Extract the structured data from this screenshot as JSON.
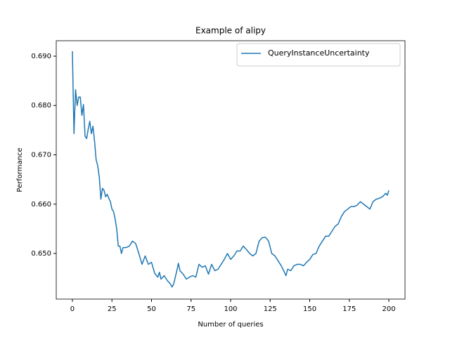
{
  "chart_data": {
    "type": "line",
    "title": "Example of alipy",
    "x_label": "Number of queries",
    "y_label": "Performance",
    "x": [
      0,
      1,
      2,
      3,
      4,
      5,
      6,
      7,
      8,
      9,
      10,
      11,
      12,
      13,
      14,
      15,
      16,
      17,
      18,
      19,
      20,
      21,
      22,
      23,
      24,
      25,
      26,
      27,
      28,
      29,
      30,
      31,
      32,
      34,
      36,
      38,
      40,
      42,
      44,
      46,
      48,
      50,
      52,
      54,
      55,
      56,
      58,
      60,
      62,
      63,
      64,
      66,
      67,
      68,
      70,
      72,
      74,
      76,
      78,
      80,
      82,
      84,
      86,
      88,
      90,
      92,
      94,
      96,
      98,
      100,
      102,
      104,
      106,
      108,
      110,
      112,
      114,
      116,
      118,
      120,
      122,
      124,
      126,
      128,
      130,
      132,
      134,
      135,
      136,
      138,
      140,
      142,
      144,
      146,
      148,
      150,
      152,
      154,
      156,
      158,
      160,
      162,
      164,
      166,
      168,
      170,
      172,
      174,
      176,
      178,
      180,
      182,
      184,
      186,
      188,
      190,
      192,
      194,
      196,
      198,
      199,
      200
    ],
    "series": [
      {
        "name": "QueryInstanceUncertainty",
        "color": "#1f77b4",
        "values": [
          0.691,
          0.6743,
          0.6832,
          0.68,
          0.6817,
          0.6817,
          0.678,
          0.6802,
          0.6738,
          0.6733,
          0.6752,
          0.6768,
          0.6743,
          0.6758,
          0.6728,
          0.669,
          0.6678,
          0.6655,
          0.661,
          0.6632,
          0.6628,
          0.6615,
          0.662,
          0.6612,
          0.6605,
          0.659,
          0.6585,
          0.657,
          0.655,
          0.6515,
          0.6515,
          0.65,
          0.6512,
          0.6512,
          0.6515,
          0.6525,
          0.652,
          0.65,
          0.6478,
          0.6495,
          0.6478,
          0.6482,
          0.646,
          0.6452,
          0.6462,
          0.6448,
          0.6455,
          0.6445,
          0.6438,
          0.6432,
          0.6438,
          0.6465,
          0.648,
          0.6465,
          0.6458,
          0.6448,
          0.6452,
          0.6455,
          0.6452,
          0.6478,
          0.6472,
          0.6475,
          0.6458,
          0.6478,
          0.6465,
          0.6468,
          0.6478,
          0.6488,
          0.65,
          0.6488,
          0.6495,
          0.6505,
          0.6505,
          0.6515,
          0.6508,
          0.65,
          0.6495,
          0.65,
          0.6525,
          0.6532,
          0.6533,
          0.6525,
          0.65,
          0.6495,
          0.6485,
          0.6475,
          0.6462,
          0.6455,
          0.6468,
          0.6465,
          0.6475,
          0.6478,
          0.6478,
          0.6475,
          0.6482,
          0.6488,
          0.6498,
          0.65,
          0.6515,
          0.6525,
          0.6535,
          0.6535,
          0.6545,
          0.6555,
          0.656,
          0.6575,
          0.6585,
          0.659,
          0.6595,
          0.6595,
          0.6598,
          0.6605,
          0.66,
          0.6595,
          0.659,
          0.6605,
          0.661,
          0.6612,
          0.6615,
          0.6622,
          0.6618,
          0.6628
        ]
      }
    ],
    "xlim": [
      -10.2,
      210.2
    ],
    "ylim": [
      0.64075,
      0.69313
    ],
    "xticks": [
      0,
      25,
      50,
      75,
      100,
      125,
      150,
      175,
      200
    ],
    "yticks": [
      {
        "value": 0.65,
        "label": "0.650"
      },
      {
        "value": 0.66,
        "label": "0.660"
      },
      {
        "value": 0.67,
        "label": "0.670"
      },
      {
        "value": 0.68,
        "label": "0.680"
      },
      {
        "value": 0.69,
        "label": "0.690"
      }
    ],
    "legend": "upper right"
  }
}
